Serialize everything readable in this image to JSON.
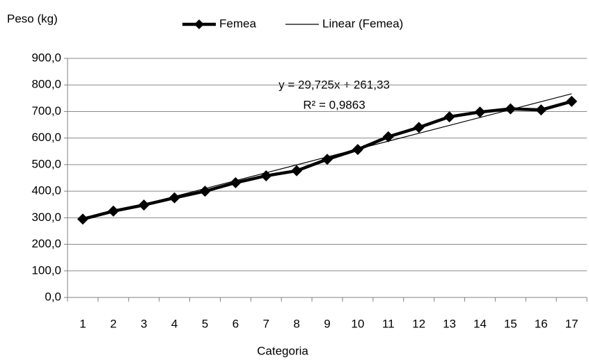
{
  "chart_data": {
    "type": "line",
    "y_axis_label": "Peso (kg)",
    "x_axis_label": "Categoria",
    "categories": [
      "1",
      "2",
      "3",
      "4",
      "5",
      "6",
      "7",
      "8",
      "9",
      "10",
      "11",
      "12",
      "13",
      "14",
      "15",
      "16",
      "17"
    ],
    "series": [
      {
        "name": "Femea",
        "color": "#000000",
        "values": [
          295,
          325,
          348,
          375,
          400,
          432,
          458,
          477,
          520,
          557,
          605,
          640,
          680,
          698,
          710,
          706,
          738
        ]
      },
      {
        "name": "Linear (Femea)",
        "color": "#000000",
        "values": [
          291.1,
          320.8,
          350.5,
          380.2,
          409.9,
          439.7,
          469.4,
          499.1,
          528.9,
          558.6,
          588.3,
          618.0,
          647.8,
          677.5,
          707.2,
          736.9,
          766.7
        ]
      }
    ],
    "annotations": [
      "y = 29,725x + 261,33",
      "R² = 0,9863"
    ],
    "ylim": [
      0,
      900
    ],
    "yticks": [
      {
        "value": 0,
        "label": "0,0"
      },
      {
        "value": 100,
        "label": "100,0"
      },
      {
        "value": 200,
        "label": "200,0"
      },
      {
        "value": 300,
        "label": "300,0"
      },
      {
        "value": 400,
        "label": "400,0"
      },
      {
        "value": 500,
        "label": "500,0"
      },
      {
        "value": 600,
        "label": "600,0"
      },
      {
        "value": 700,
        "label": "700,0"
      },
      {
        "value": 800,
        "label": "800,0"
      },
      {
        "value": 900,
        "label": "900,0"
      }
    ],
    "grid": true
  }
}
